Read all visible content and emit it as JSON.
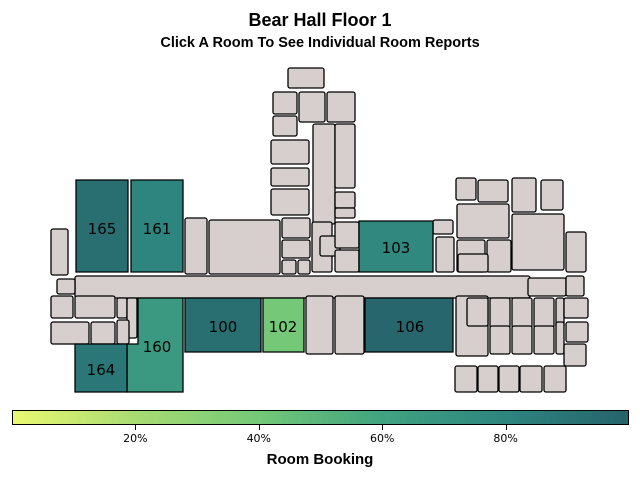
{
  "map": {
    "title": "Bear Hall Floor 1",
    "subtitle": "Click A Room To See Individual Room Reports"
  },
  "rooms": [
    {
      "id": "165",
      "label": "165",
      "booking": 0.93
    },
    {
      "id": "161",
      "label": "161",
      "booking": 0.8
    },
    {
      "id": "103",
      "label": "103",
      "booking": 0.78
    },
    {
      "id": "100",
      "label": "100",
      "booking": 0.93
    },
    {
      "id": "102",
      "label": "102",
      "booking": 0.4
    },
    {
      "id": "106",
      "label": "106",
      "booking": 0.98
    },
    {
      "id": "160",
      "label": "160",
      "booking": 0.67
    },
    {
      "id": "164",
      "label": "164",
      "booking": 0.88
    }
  ],
  "legend": {
    "title": "Room Booking",
    "ticks": [
      "20%",
      "40%",
      "60%",
      "80%"
    ],
    "color_low": "#e9f872",
    "color_high": "#26636b"
  }
}
